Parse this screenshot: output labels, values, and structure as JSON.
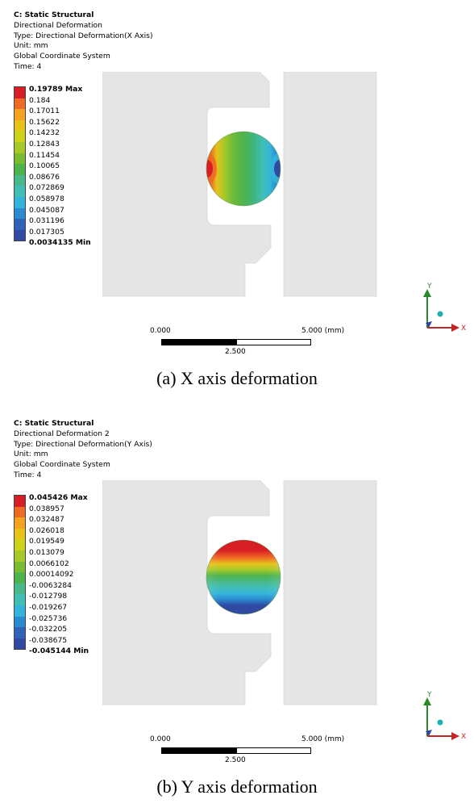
{
  "panels": [
    {
      "header": {
        "line1": "C: Static Structural",
        "line2": "Directional Deformation",
        "line3": "Type: Directional Deformation(X Axis)",
        "line4": "Unit: mm",
        "line5": "Global Coordinate System",
        "line6": "Time: 4"
      },
      "legend": [
        "0.19789 Max",
        "0.184",
        "0.17011",
        "0.15622",
        "0.14232",
        "0.12843",
        "0.11454",
        "0.10065",
        "0.08676",
        "0.072869",
        "0.058978",
        "0.045087",
        "0.031196",
        "0.017305",
        "0.0034135 Min"
      ],
      "scale": {
        "left": "0.000",
        "right": "5.000 (mm)",
        "mid": "2.500"
      },
      "triad": {
        "y": "Y",
        "x": "X"
      },
      "caption": "(a) X axis deformation"
    },
    {
      "header": {
        "line1": "C: Static Structural",
        "line2": "Directional Deformation 2",
        "line3": "Type: Directional Deformation(Y Axis)",
        "line4": "Unit: mm",
        "line5": "Global Coordinate System",
        "line6": "Time: 4"
      },
      "legend": [
        "0.045426 Max",
        "0.038957",
        "0.032487",
        "0.026018",
        "0.019549",
        "0.013079",
        "0.0066102",
        "0.00014092",
        "-0.0063284",
        "-0.012798",
        "-0.019267",
        "-0.025736",
        "-0.032205",
        "-0.038675",
        "-0.045144 Min"
      ],
      "scale": {
        "left": "0.000",
        "right": "5.000 (mm)",
        "mid": "2.500"
      },
      "triad": {
        "y": "Y",
        "x": "X"
      },
      "caption": "(b) Y axis deformation"
    }
  ],
  "colors": {
    "legend_bands": [
      "#d81e25",
      "#ef6a25",
      "#f4a21f",
      "#e6c21b",
      "#cfd21a",
      "#a6c928",
      "#79bb32",
      "#4eb34b",
      "#49b88a",
      "#41bfb6",
      "#35b4db",
      "#2b8bd0",
      "#2f62b8",
      "#304aa3"
    ],
    "part_fill": "#e5e5e5",
    "part_edge": "#dcdcdc",
    "triad_y": "#2a8a2a",
    "triad_x": "#c12626",
    "triad_z": "#2f46a8",
    "triad_dot": "#18b1b1"
  }
}
